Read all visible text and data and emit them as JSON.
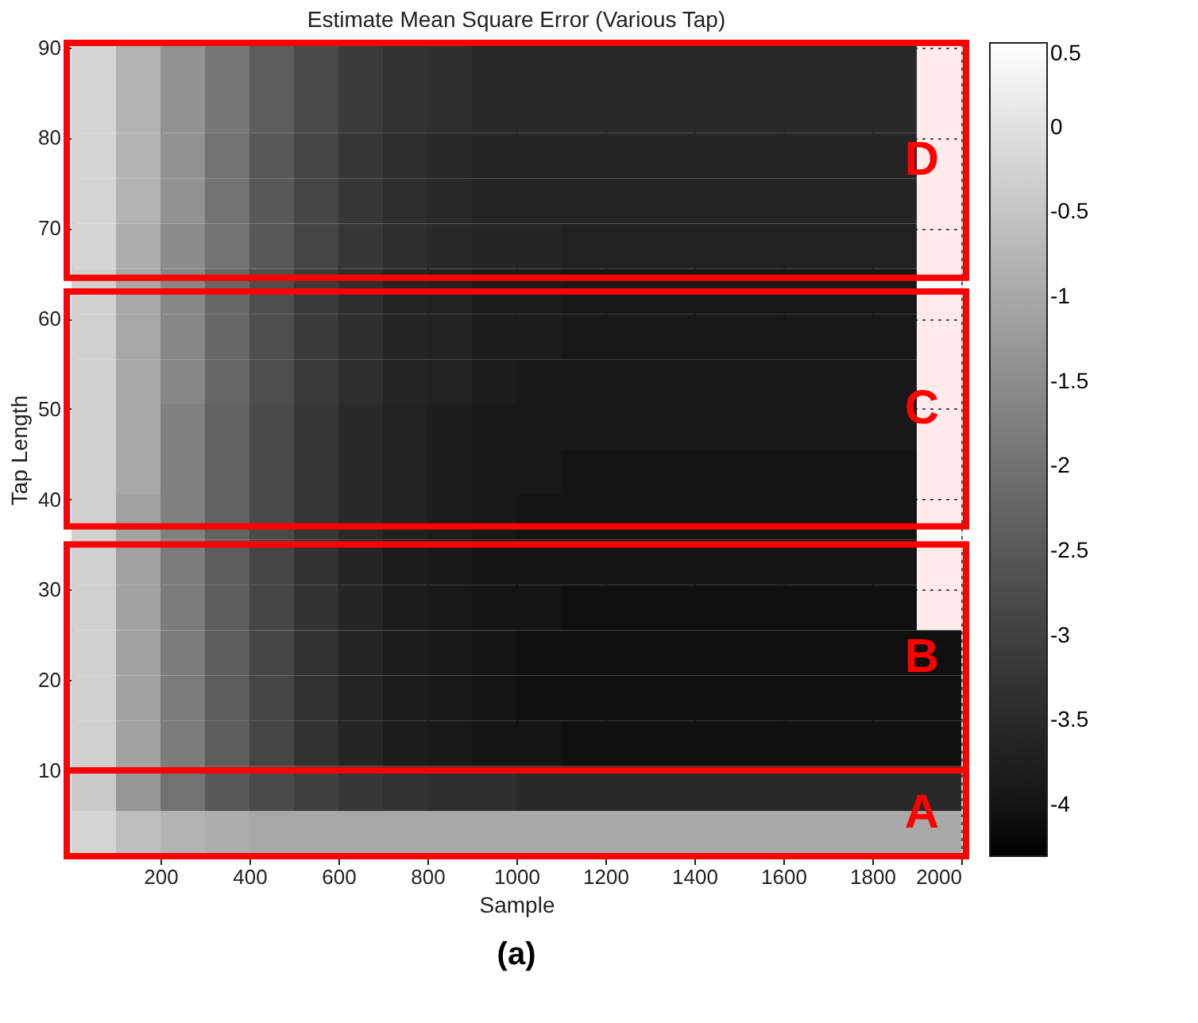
{
  "chart_data": {
    "type": "heatmap",
    "title": "Estimate Mean Square Error (Various Tap)",
    "xlabel": "Sample",
    "ylabel": "Tap Length",
    "x": [
      50,
      150,
      250,
      350,
      450,
      550,
      650,
      750,
      850,
      950,
      1050,
      1150,
      1250,
      1350,
      1450,
      1550,
      1650,
      1750,
      1850,
      1950
    ],
    "y": [
      88,
      83,
      78,
      73,
      68,
      63,
      58,
      53,
      48,
      43,
      38,
      33,
      28,
      23,
      18,
      13,
      8,
      3
    ],
    "cells": [
      [
        -0.2,
        -0.8,
        -1.4,
        -1.9,
        -2.4,
        -2.8,
        -3.1,
        -3.3,
        -3.4,
        -3.5,
        -3.5,
        -3.5,
        -3.5,
        -3.5,
        -3.5,
        -3.5,
        -3.5,
        -3.5,
        -3.5,
        null
      ],
      [
        -0.2,
        -0.8,
        -1.4,
        -1.9,
        -2.4,
        -2.8,
        -3.1,
        -3.3,
        -3.4,
        -3.5,
        -3.5,
        -3.5,
        -3.5,
        -3.5,
        -3.5,
        -3.5,
        -3.5,
        -3.5,
        -3.5,
        null
      ],
      [
        -0.2,
        -0.8,
        -1.4,
        -2.0,
        -2.5,
        -2.9,
        -3.2,
        -3.4,
        -3.5,
        -3.6,
        -3.6,
        -3.6,
        -3.6,
        -3.6,
        -3.6,
        -3.6,
        -3.6,
        -3.6,
        -3.6,
        null
      ],
      [
        -0.2,
        -0.8,
        -1.4,
        -2.0,
        -2.5,
        -2.9,
        -3.2,
        -3.4,
        -3.5,
        -3.6,
        -3.6,
        -3.6,
        -3.6,
        -3.6,
        -3.6,
        -3.6,
        -3.6,
        -3.6,
        -3.6,
        null
      ],
      [
        -0.2,
        -0.9,
        -1.5,
        -2.0,
        -2.5,
        -2.9,
        -3.2,
        -3.4,
        -3.5,
        -3.6,
        -3.6,
        -3.7,
        -3.7,
        -3.7,
        -3.7,
        -3.7,
        -3.7,
        -3.7,
        -3.7,
        null
      ],
      [
        -0.3,
        -1.0,
        -1.6,
        -2.2,
        -2.7,
        -3.1,
        -3.4,
        -3.6,
        -3.7,
        -3.8,
        -3.8,
        -3.9,
        -3.9,
        -3.9,
        -3.9,
        -3.9,
        -3.9,
        -3.9,
        -3.9,
        null
      ],
      [
        -0.3,
        -1.0,
        -1.6,
        -2.2,
        -2.7,
        -3.1,
        -3.4,
        -3.6,
        -3.7,
        -3.8,
        -3.8,
        -3.9,
        -3.9,
        -3.9,
        -3.9,
        -3.9,
        -3.9,
        -3.9,
        -3.9,
        null
      ],
      [
        -0.3,
        -1.0,
        -1.6,
        -2.2,
        -2.7,
        -3.1,
        -3.4,
        -3.6,
        -3.7,
        -3.8,
        -3.9,
        -3.9,
        -3.9,
        -3.9,
        -3.9,
        -3.9,
        -3.9,
        -3.9,
        -3.9,
        null
      ],
      [
        -0.3,
        -1.0,
        -1.7,
        -2.3,
        -2.8,
        -3.2,
        -3.5,
        -3.7,
        -3.8,
        -3.9,
        -3.9,
        -3.9,
        -3.9,
        -3.9,
        -3.9,
        -3.9,
        -3.9,
        -3.9,
        -3.9,
        null
      ],
      [
        -0.3,
        -1.0,
        -1.7,
        -2.3,
        -2.8,
        -3.2,
        -3.5,
        -3.7,
        -3.8,
        -3.9,
        -3.9,
        -4.0,
        -4.0,
        -4.0,
        -4.0,
        -4.0,
        -4.0,
        -4.0,
        -4.0,
        null
      ],
      [
        -0.3,
        -1.1,
        -1.7,
        -2.3,
        -2.8,
        -3.2,
        -3.5,
        -3.7,
        -3.8,
        -3.9,
        -4.0,
        -4.0,
        -4.0,
        -4.0,
        -4.0,
        -4.0,
        -4.0,
        -4.0,
        -4.0,
        null
      ],
      [
        -0.3,
        -1.1,
        -1.8,
        -2.4,
        -2.9,
        -3.3,
        -3.6,
        -3.8,
        -3.9,
        -4.0,
        -4.0,
        -4.0,
        -4.0,
        -4.0,
        -4.0,
        -4.0,
        -4.0,
        -4.0,
        -4.0,
        null
      ],
      [
        -0.3,
        -1.1,
        -1.8,
        -2.4,
        -2.9,
        -3.3,
        -3.6,
        -3.8,
        -3.9,
        -4.0,
        -4.0,
        -4.1,
        -4.1,
        -4.1,
        -4.1,
        -4.1,
        -4.1,
        -4.1,
        -4.1,
        null
      ],
      [
        -0.3,
        -1.1,
        -1.8,
        -2.4,
        -2.9,
        -3.3,
        -3.6,
        -3.8,
        -3.9,
        -4.0,
        -4.1,
        -4.1,
        -4.1,
        -4.1,
        -4.1,
        -4.1,
        -4.1,
        -4.1,
        -4.1,
        -4.1
      ],
      [
        -0.3,
        -1.1,
        -1.8,
        -2.4,
        -2.9,
        -3.3,
        -3.6,
        -3.8,
        -3.9,
        -4.0,
        -4.1,
        -4.1,
        -4.1,
        -4.1,
        -4.1,
        -4.1,
        -4.1,
        -4.1,
        -4.1,
        -4.1
      ],
      [
        -0.3,
        -1.1,
        -1.8,
        -2.4,
        -2.9,
        -3.3,
        -3.6,
        -3.8,
        -3.9,
        -4.0,
        -4.0,
        -4.1,
        -4.1,
        -4.1,
        -4.1,
        -4.1,
        -4.1,
        -4.1,
        -4.1,
        -4.1
      ],
      [
        -0.4,
        -1.3,
        -2.0,
        -2.5,
        -2.8,
        -3.0,
        -3.2,
        -3.3,
        -3.4,
        -3.4,
        -3.5,
        -3.5,
        -3.5,
        -3.5,
        -3.5,
        -3.5,
        -3.5,
        -3.5,
        -3.5,
        -3.5
      ],
      [
        -0.2,
        -0.6,
        -0.8,
        -0.9,
        -1.0,
        -1.0,
        -1.0,
        -1.0,
        -1.0,
        -1.0,
        -1.0,
        -1.0,
        -1.0,
        -1.0,
        -1.0,
        -1.0,
        -1.0,
        -1.0,
        -1.0,
        -1.0
      ]
    ],
    "xlim": [
      0,
      2000
    ],
    "ylim": [
      0.5,
      90.5
    ],
    "xticks": [
      200,
      400,
      600,
      800,
      1000,
      1200,
      1400,
      1600,
      1800,
      2000
    ],
    "yticks": [
      10,
      20,
      30,
      40,
      50,
      60,
      70,
      80,
      90
    ],
    "clim": [
      -4.3,
      0.5
    ],
    "cticks": [
      0.5,
      0,
      -0.5,
      -1,
      -1.5,
      -2,
      -2.5,
      -3,
      -3.5,
      -4
    ],
    "grid": true,
    "bands": [
      {
        "axis": "y",
        "from": 0.5,
        "to": 10,
        "label": "A",
        "color": "#ff0000"
      },
      {
        "axis": "y",
        "from": 10,
        "to": 35,
        "label": "B",
        "color": "#ff0000"
      },
      {
        "axis": "y",
        "from": 37,
        "to": 63,
        "label": "C",
        "color": "#ff0000"
      },
      {
        "axis": "y",
        "from": 64.5,
        "to": 90.5,
        "label": "D",
        "color": "#ff0000"
      }
    ],
    "annotations": [
      "(a)"
    ]
  }
}
